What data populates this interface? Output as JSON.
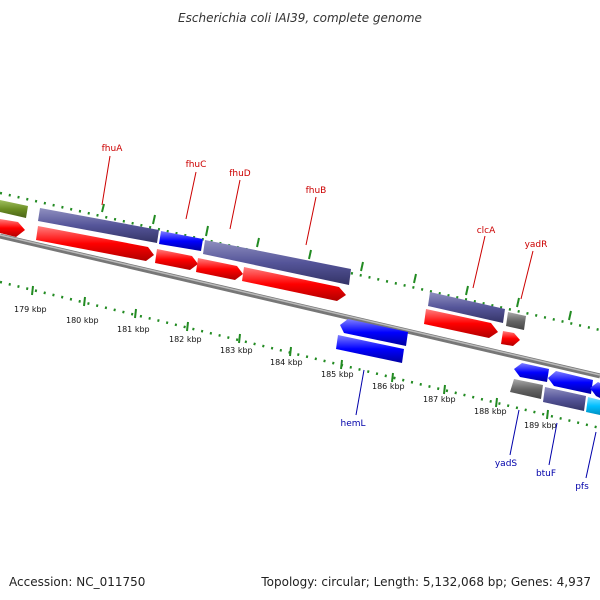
{
  "title": "Escherichia coli IAI39, complete genome",
  "footer": {
    "accession": "Accession: NC_011750",
    "summary": "Topology: circular; Length: 5,132,068 bp; Genes: 4,937"
  },
  "scale_labels": [
    "179 kbp",
    "180 kbp",
    "181 kbp",
    "182 kbp",
    "183 kbp",
    "184 kbp",
    "185 kbp",
    "186 kbp",
    "187 kbp",
    "188 kbp",
    "189 kbp"
  ],
  "genes": {
    "top": [
      "fhuA",
      "fhuC",
      "fhuD",
      "fhuB",
      "clcA",
      "yadR"
    ],
    "bottom": [
      "hemL",
      "yadS",
      "btuF",
      "pfs"
    ]
  },
  "colors": {
    "forward_label": "#cc0000",
    "reverse_label": "#0000aa",
    "cds": "#ff0000",
    "cds_reverse": "#0000ff",
    "gene": "#555599",
    "backbone": "#888888",
    "ticks": "#228B22",
    "olive": "#6b8e23",
    "cyan": "#00bfff",
    "grey_feature": "#666666"
  }
}
